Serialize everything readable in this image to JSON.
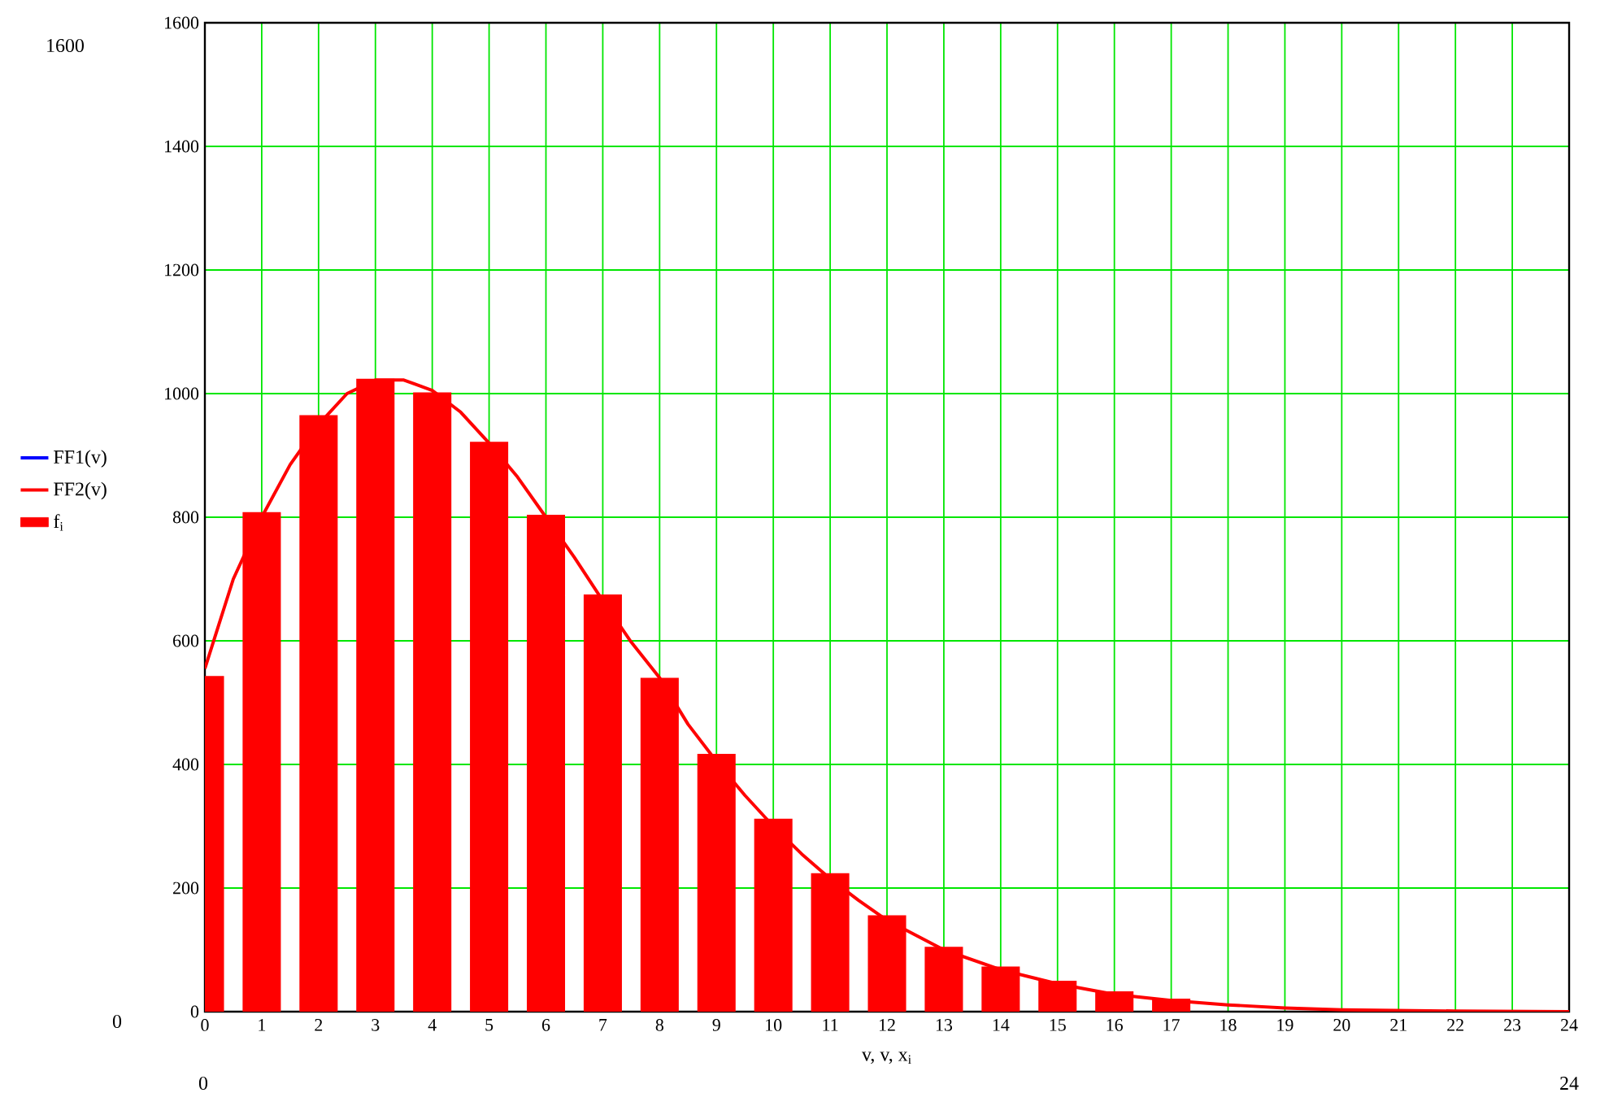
{
  "chart_data": {
    "type": "line",
    "xlabel": "v, v, x$_{i}$",
    "xlim": [
      0,
      24
    ],
    "xticks": [
      0,
      1,
      2,
      3,
      4,
      5,
      6,
      7,
      8,
      9,
      10,
      11,
      12,
      13,
      14,
      15,
      16,
      17,
      18,
      19,
      20,
      21,
      22,
      23,
      24
    ],
    "ylim": [
      0,
      1600
    ],
    "yticks": [
      0,
      200,
      400,
      600,
      800,
      1000,
      1200,
      1400,
      1600
    ],
    "grid": true,
    "legend": "left",
    "series": [
      {
        "name": "FF1(v)",
        "color": "#0000ff",
        "values": [
          null
        ]
      },
      {
        "name": "FF2(v)",
        "color": "#ff0000",
        "x": [
          0,
          0.5,
          1,
          1.5,
          2,
          2.5,
          3,
          3.5,
          4,
          4.5,
          5,
          5.5,
          6,
          6.5,
          7,
          7.5,
          8,
          8.5,
          9,
          9.5,
          10,
          10.5,
          11,
          11.5,
          12,
          13,
          14,
          15,
          16,
          17,
          18,
          19,
          20,
          22,
          24
        ],
        "values": [
          555,
          700,
          800,
          885,
          950,
          1000,
          1022,
          1022,
          1005,
          970,
          920,
          865,
          800,
          735,
          665,
          598,
          540,
          465,
          405,
          350,
          300,
          255,
          215,
          180,
          148,
          100,
          68,
          45,
          28,
          18,
          11,
          6,
          3,
          1,
          0
        ]
      },
      {
        "name": "f$_{i}$",
        "color": "#ff0000",
        "type": "bar",
        "x": [
          0,
          1,
          2,
          3,
          4,
          5,
          6,
          7,
          8,
          9,
          10,
          11,
          12,
          13,
          14,
          15,
          16,
          17
        ],
        "values": [
          542,
          807,
          964,
          1023,
          1001,
          921,
          803,
          674,
          539,
          416,
          311,
          223,
          155,
          104,
          72,
          49,
          32,
          20
        ]
      }
    ],
    "annotations": [
      "1600",
      "0",
      "0",
      "24"
    ]
  }
}
